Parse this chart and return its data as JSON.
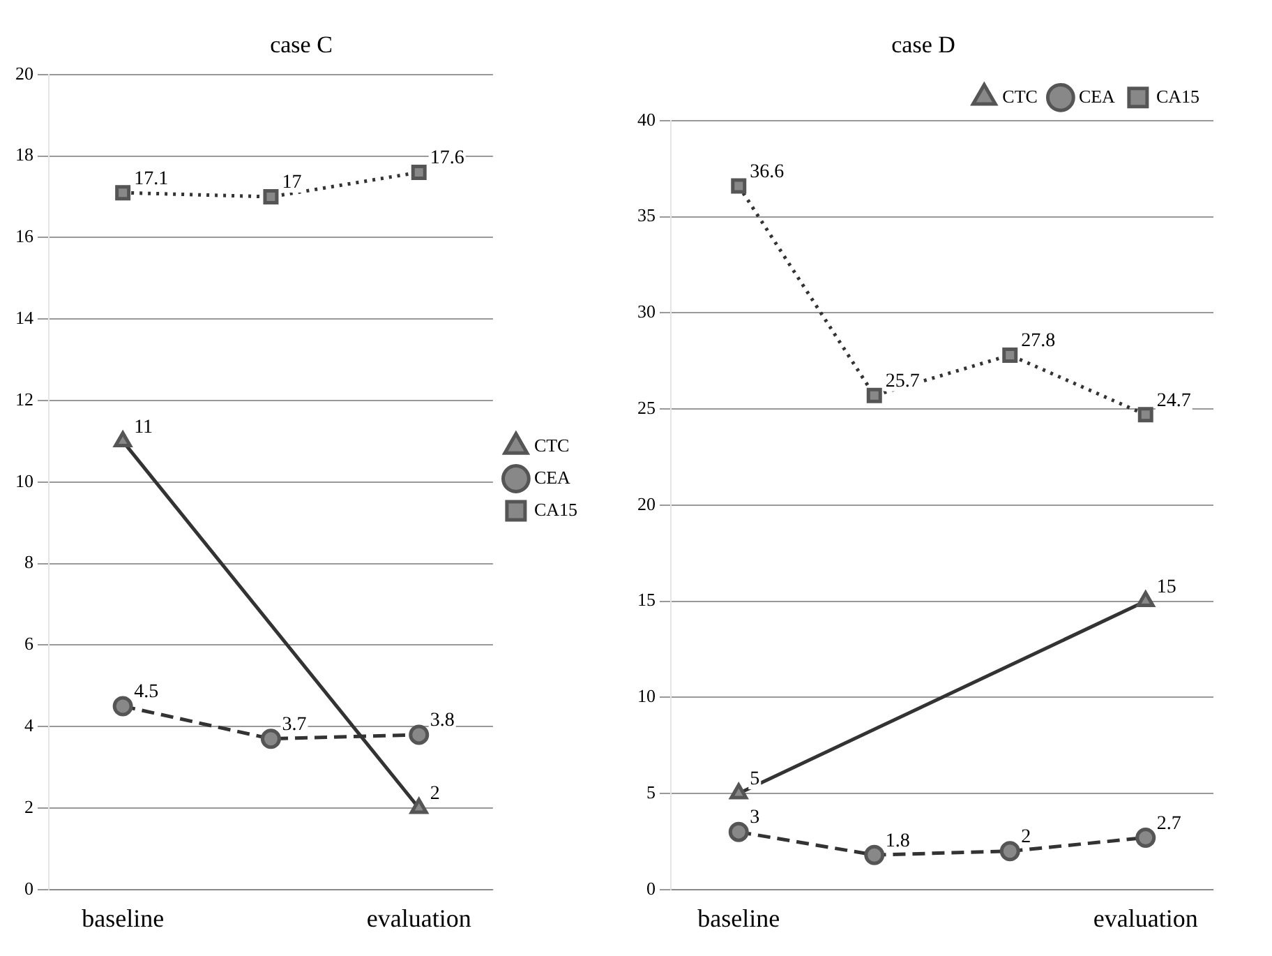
{
  "chart_data": [
    {
      "type": "line",
      "title": "case C",
      "categories": [
        "baseline",
        null,
        "evaluation"
      ],
      "ylim": [
        0,
        20
      ],
      "yticks": [
        0,
        2,
        4,
        6,
        8,
        10,
        12,
        14,
        16,
        18,
        20
      ],
      "grid": "y",
      "legend": "right",
      "data_labels": true,
      "series": [
        {
          "name": "CTC",
          "color": "#333333",
          "marker": "triangle",
          "line_style": "solid",
          "values": [
            11,
            null,
            2
          ]
        },
        {
          "name": "CEA",
          "color": "#333333",
          "marker": "circle",
          "line_style": "dashed",
          "values": [
            4.5,
            3.7,
            3.8
          ]
        },
        {
          "name": "CA15",
          "color": "#333333",
          "marker": "square",
          "line_style": "dotted",
          "values": [
            17.1,
            17,
            17.6
          ]
        }
      ]
    },
    {
      "type": "line",
      "title": "case D",
      "categories": [
        "baseline",
        null,
        null,
        "evaluation"
      ],
      "ylim": [
        0,
        40
      ],
      "yticks": [
        0,
        5,
        10,
        15,
        20,
        25,
        30,
        35,
        40
      ],
      "grid": "y",
      "legend": "top right",
      "data_labels": true,
      "series": [
        {
          "name": "CTC",
          "color": "#333333",
          "marker": "triangle",
          "line_style": "solid",
          "values": [
            5,
            null,
            null,
            15
          ]
        },
        {
          "name": "CEA",
          "color": "#333333",
          "marker": "circle",
          "line_style": "dashed",
          "values": [
            3,
            1.8,
            2,
            2.7
          ]
        },
        {
          "name": "CA15",
          "color": "#333333",
          "marker": "square",
          "line_style": "dotted",
          "values": [
            36.6,
            25.7,
            27.8,
            24.7
          ]
        }
      ]
    }
  ]
}
